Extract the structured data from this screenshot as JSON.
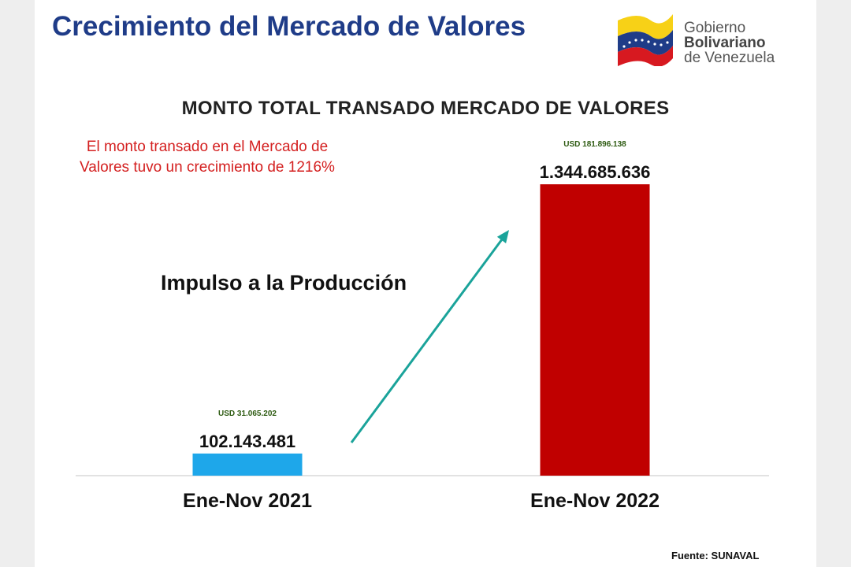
{
  "header": {
    "title": "Crecimiento del Mercado de Valores"
  },
  "logo": {
    "line1": "Gobierno",
    "line2": "Bolivariano",
    "line3": "de Venezuela",
    "flag_colors": [
      "#f7d117",
      "#1f3c88",
      "#d71920"
    ]
  },
  "note": "El monto transado en el Mercado de Valores tuvo un crecimiento de 1216%",
  "slogan": "Impulso a la Producción",
  "source": "Fuente: SUNAVAL",
  "arrow_color": "#1aa39a",
  "chart_data": {
    "type": "bar",
    "title": "MONTO TOTAL TRANSADO MERCADO DE VALORES",
    "categories": [
      "Ene-Nov 2021",
      "Ene-Nov 2022"
    ],
    "values": [
      102143481,
      1344685636
    ],
    "value_labels": [
      "102.143.481",
      "1.344.685.636"
    ],
    "usd_labels": [
      "USD 31.065.202",
      "USD 181.896.138"
    ],
    "colors": [
      "#1ea7ea",
      "#c00000"
    ],
    "ylim": [
      0,
      1344685636
    ],
    "grid": false,
    "xlabel": "",
    "ylabel": ""
  }
}
